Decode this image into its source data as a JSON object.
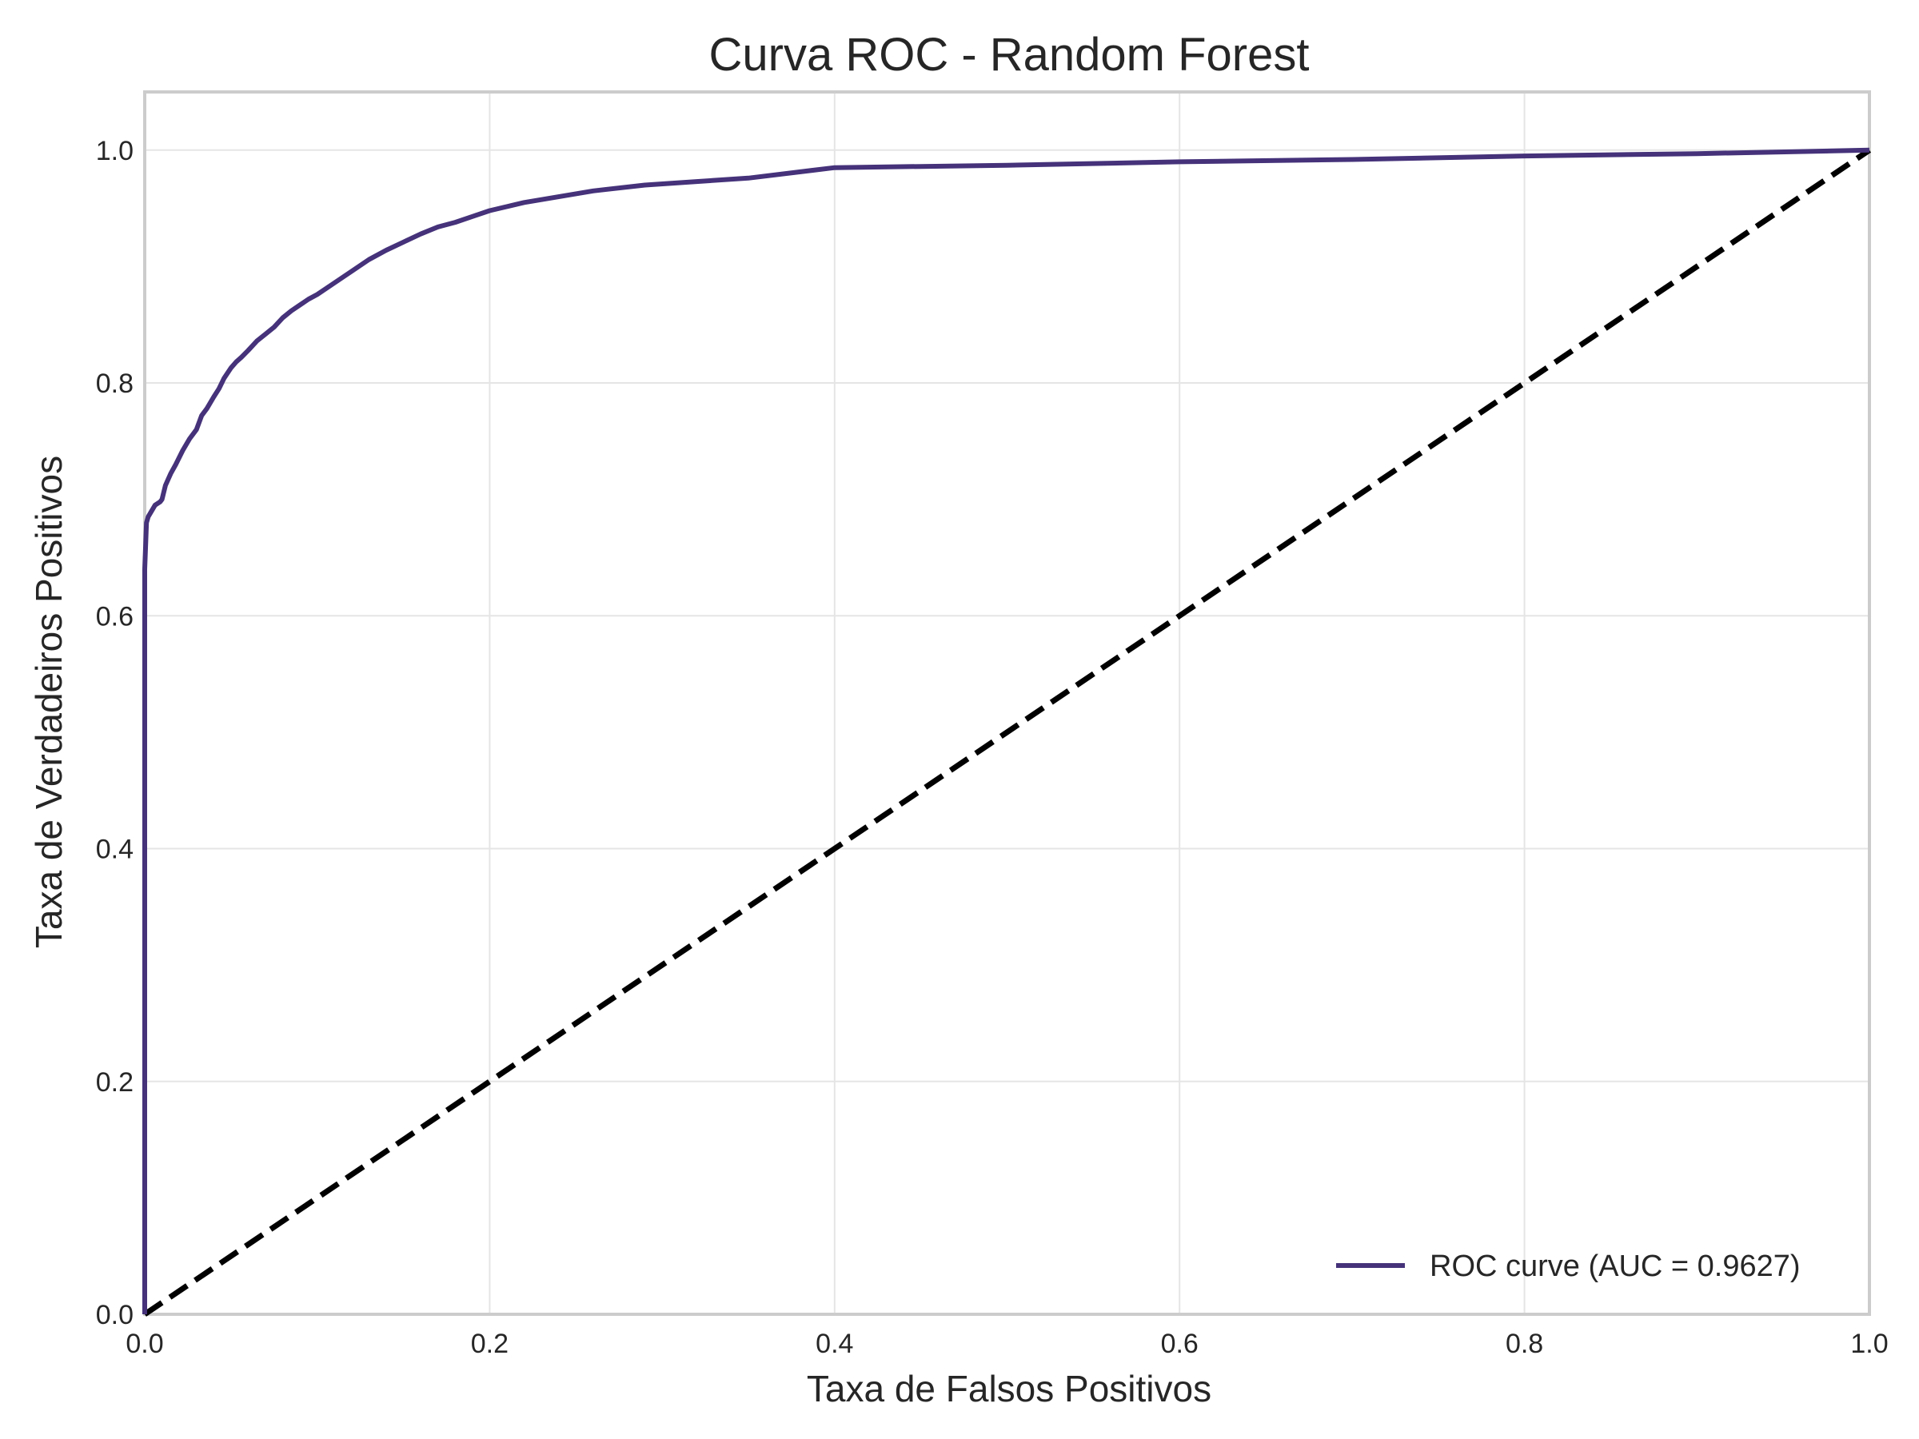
{
  "chart_data": {
    "type": "line",
    "title": "Curva ROC - Random Forest",
    "xlabel": "Taxa de Falsos Positivos",
    "ylabel": "Taxa de Verdadeiros Positivos",
    "xlim": [
      0.0,
      1.0
    ],
    "ylim": [
      0.0,
      1.05
    ],
    "xticks": [
      0.0,
      0.2,
      0.4,
      0.6,
      0.8,
      1.0
    ],
    "yticks": [
      0.0,
      0.2,
      0.4,
      0.6,
      0.8,
      1.0
    ],
    "xtick_labels": [
      "0.0",
      "0.2",
      "0.4",
      "0.6",
      "0.8",
      "1.0"
    ],
    "ytick_labels": [
      "0.0",
      "0.2",
      "0.4",
      "0.6",
      "0.8",
      "1.0"
    ],
    "grid": true,
    "legend_position": "lower-right",
    "series": [
      {
        "name": "ROC curve (AUC = 0.9627)",
        "color": "#45327a",
        "style": "solid",
        "x": [
          0.0,
          0.0,
          0.001,
          0.002,
          0.004,
          0.006,
          0.009,
          0.01,
          0.012,
          0.015,
          0.018,
          0.022,
          0.026,
          0.03,
          0.033,
          0.036,
          0.04,
          0.043,
          0.046,
          0.05,
          0.053,
          0.056,
          0.06,
          0.065,
          0.07,
          0.075,
          0.08,
          0.085,
          0.09,
          0.095,
          0.1,
          0.11,
          0.12,
          0.13,
          0.14,
          0.15,
          0.16,
          0.17,
          0.18,
          0.19,
          0.2,
          0.22,
          0.24,
          0.26,
          0.29,
          0.32,
          0.35,
          0.4,
          0.5,
          0.6,
          0.7,
          0.8,
          0.9,
          1.0
        ],
        "y": [
          0.0,
          0.64,
          0.68,
          0.685,
          0.69,
          0.695,
          0.698,
          0.7,
          0.712,
          0.722,
          0.73,
          0.742,
          0.752,
          0.76,
          0.772,
          0.778,
          0.788,
          0.795,
          0.804,
          0.813,
          0.818,
          0.822,
          0.828,
          0.836,
          0.842,
          0.848,
          0.856,
          0.862,
          0.867,
          0.872,
          0.876,
          0.886,
          0.896,
          0.906,
          0.914,
          0.921,
          0.928,
          0.934,
          0.938,
          0.943,
          0.948,
          0.955,
          0.96,
          0.965,
          0.97,
          0.973,
          0.976,
          0.985,
          0.987,
          0.99,
          0.992,
          0.995,
          0.997,
          1.0
        ]
      },
      {
        "name": "",
        "color": "#000000",
        "style": "dashed",
        "x": [
          0.0,
          1.0
        ],
        "y": [
          0.0,
          1.0
        ]
      }
    ]
  }
}
